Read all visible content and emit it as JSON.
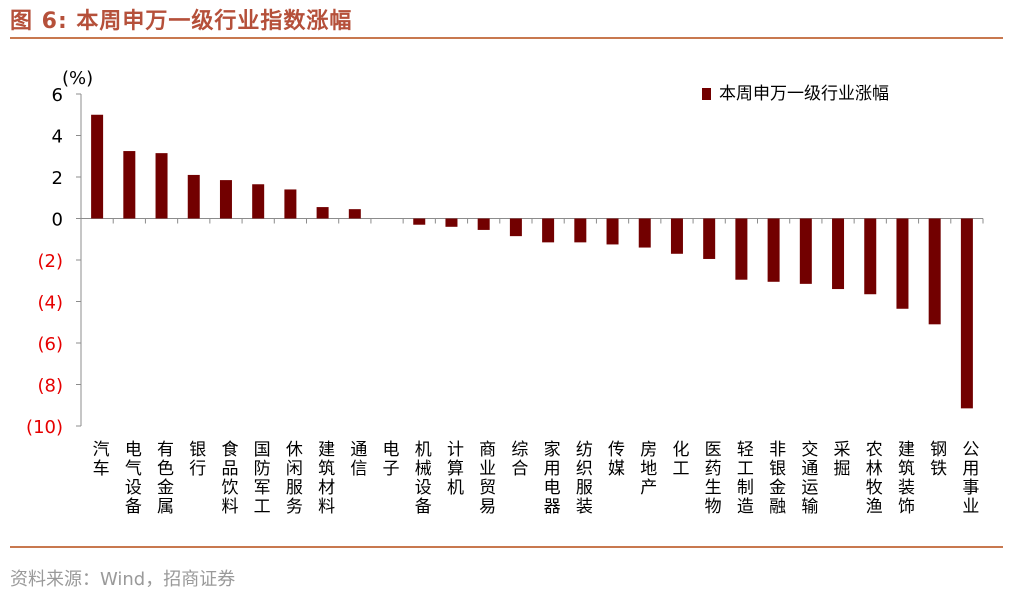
{
  "title": "图 6:  本周申万一级行业指数涨幅",
  "source": "资料来源：Wind，招商证券",
  "colors": {
    "bar": "#720000",
    "title": "#b5503a",
    "rule": "#c8784f",
    "axis": "#8c8c8c",
    "negative_tick": "#e60000",
    "source": "#9a9a9a"
  },
  "chart_data": {
    "type": "bar",
    "title": "本周申万一级行业指数涨幅",
    "ylabel": "(%)",
    "xlabel": "",
    "ylim": [
      -10,
      6
    ],
    "yticks": [
      6,
      4,
      2,
      0,
      -2,
      -4,
      -6,
      -8,
      -10
    ],
    "ytick_labels": [
      "6",
      "4",
      "2",
      "0",
      "(2)",
      "(4)",
      "(6)",
      "(8)",
      "(10)"
    ],
    "legend": {
      "position": "top-right",
      "entries": [
        "本周申万一级行业涨幅"
      ]
    },
    "categories": [
      "汽车",
      "电气设备",
      "有色金属",
      "银行",
      "食品饮料",
      "国防军工",
      "休闲服务",
      "建筑材料",
      "通信",
      "电子",
      "机械设备",
      "计算机",
      "商业贸易",
      "综合",
      "家用电器",
      "纺织服装",
      "传媒",
      "房地产",
      "化工",
      "医药生物",
      "轻工制造",
      "非银金融",
      "交通运输",
      "采掘",
      "农林牧渔",
      "建筑装饰",
      "钢铁",
      "公用事业"
    ],
    "series": [
      {
        "name": "本周申万一级行业涨幅",
        "values": [
          5.0,
          3.25,
          3.15,
          2.1,
          1.85,
          1.65,
          1.4,
          0.55,
          0.45,
          0.0,
          -0.3,
          -0.4,
          -0.55,
          -0.85,
          -1.15,
          -1.15,
          -1.25,
          -1.4,
          -1.7,
          -1.95,
          -2.95,
          -3.05,
          -3.15,
          -3.4,
          -3.65,
          -4.35,
          -5.1,
          -9.15
        ]
      }
    ]
  }
}
